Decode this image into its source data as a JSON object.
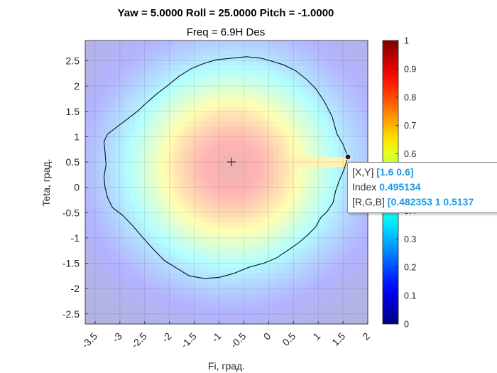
{
  "chart_data": {
    "type": "heatmap",
    "title": "Yaw = 5.0000  Roll = 25.0000  Pitch = -1.0000",
    "subtitle": "Freq = 6.9H Des",
    "xlabel": "Fi, град.",
    "ylabel": "Teta, град.",
    "xlim": [
      -3.7,
      2.0
    ],
    "ylim": [
      -2.7,
      2.9
    ],
    "x_ticks": [
      -3.5,
      -3,
      -2.5,
      -2,
      -1.5,
      -1,
      -0.5,
      0,
      0.5,
      1,
      1.5,
      2
    ],
    "x_tick_labels": [
      "-3.5",
      "-3",
      "-2.5",
      "-2",
      "-1.5",
      "-1",
      "-0.5",
      "0",
      "0.5",
      "1",
      "1.5",
      "2"
    ],
    "y_ticks": [
      -2.5,
      -2,
      -1.5,
      -1,
      -0.5,
      0,
      0.5,
      1,
      1.5,
      2,
      2.5
    ],
    "y_tick_labels": [
      "-2.5",
      "-2",
      "-1.5",
      "-1",
      "-0.5",
      "0",
      "0.5",
      "1",
      "1.5",
      "2",
      "2.5"
    ],
    "colormap": "jet",
    "color_alpha": 0.3,
    "clim": [
      0,
      1
    ],
    "colorbar_ticks": [
      0,
      0.1,
      0.2,
      0.3,
      0.4,
      0.5,
      0.6,
      0.7,
      0.8,
      0.9,
      1
    ],
    "colorbar_tick_labels": [
      "0",
      "0.1",
      "0.2",
      "0.3",
      "0.4",
      "0.5",
      "0.6",
      "0.7",
      "0.8",
      "0.9",
      "1"
    ],
    "field": {
      "center": [
        -0.75,
        0.4
      ],
      "peak": 0.92,
      "sigma_x": 1.55,
      "sigma_y": 1.45,
      "ridge_teta": 0.5,
      "ridge_extent": [
        -1.4,
        1.6
      ],
      "ridge_value": 0.78
    },
    "contour": {
      "level": 0.495,
      "points": [
        [
          -0.75,
          2.55
        ],
        [
          -0.45,
          2.58
        ],
        [
          -0.15,
          2.55
        ],
        [
          0.1,
          2.48
        ],
        [
          0.3,
          2.42
        ],
        [
          0.55,
          2.3
        ],
        [
          0.78,
          2.12
        ],
        [
          0.95,
          1.95
        ],
        [
          1.12,
          1.7
        ],
        [
          1.28,
          1.4
        ],
        [
          1.38,
          1.05
        ],
        [
          1.5,
          0.85
        ],
        [
          1.6,
          0.6
        ],
        [
          1.52,
          0.35
        ],
        [
          1.42,
          0.12
        ],
        [
          1.35,
          -0.08
        ],
        [
          1.3,
          -0.3
        ],
        [
          1.18,
          -0.48
        ],
        [
          1.05,
          -0.6
        ],
        [
          0.95,
          -0.78
        ],
        [
          0.78,
          -0.95
        ],
        [
          0.6,
          -1.1
        ],
        [
          0.38,
          -1.25
        ],
        [
          0.15,
          -1.4
        ],
        [
          -0.1,
          -1.5
        ],
        [
          -0.4,
          -1.58
        ],
        [
          -0.7,
          -1.7
        ],
        [
          -1.0,
          -1.78
        ],
        [
          -1.3,
          -1.8
        ],
        [
          -1.6,
          -1.75
        ],
        [
          -1.85,
          -1.6
        ],
        [
          -2.1,
          -1.45
        ],
        [
          -2.35,
          -1.2
        ],
        [
          -2.55,
          -0.98
        ],
        [
          -2.75,
          -0.75
        ],
        [
          -2.95,
          -0.55
        ],
        [
          -3.15,
          -0.4
        ],
        [
          -3.25,
          -0.2
        ],
        [
          -3.3,
          0.0
        ],
        [
          -3.32,
          0.2
        ],
        [
          -3.28,
          0.45
        ],
        [
          -3.3,
          0.7
        ],
        [
          -3.32,
          0.9
        ],
        [
          -3.25,
          1.05
        ],
        [
          -3.05,
          1.2
        ],
        [
          -2.85,
          1.35
        ],
        [
          -2.65,
          1.5
        ],
        [
          -2.45,
          1.68
        ],
        [
          -2.25,
          1.85
        ],
        [
          -2.05,
          2.0
        ],
        [
          -1.8,
          2.2
        ],
        [
          -1.55,
          2.35
        ],
        [
          -1.3,
          2.45
        ],
        [
          -1.05,
          2.52
        ],
        [
          -0.75,
          2.55
        ]
      ]
    },
    "center_marker": {
      "symbol": "+",
      "x": -0.75,
      "y": 0.5
    },
    "datatip": {
      "x": 1.6,
      "y": 0.6,
      "xy_label": "[X,Y]",
      "xy_value": "[1.6 0.6]",
      "index_label": "Index",
      "index_value": "0.495134",
      "rgb_label": "[R,G,B]",
      "rgb_value": "[0.482353 1 0.5137"
    }
  }
}
